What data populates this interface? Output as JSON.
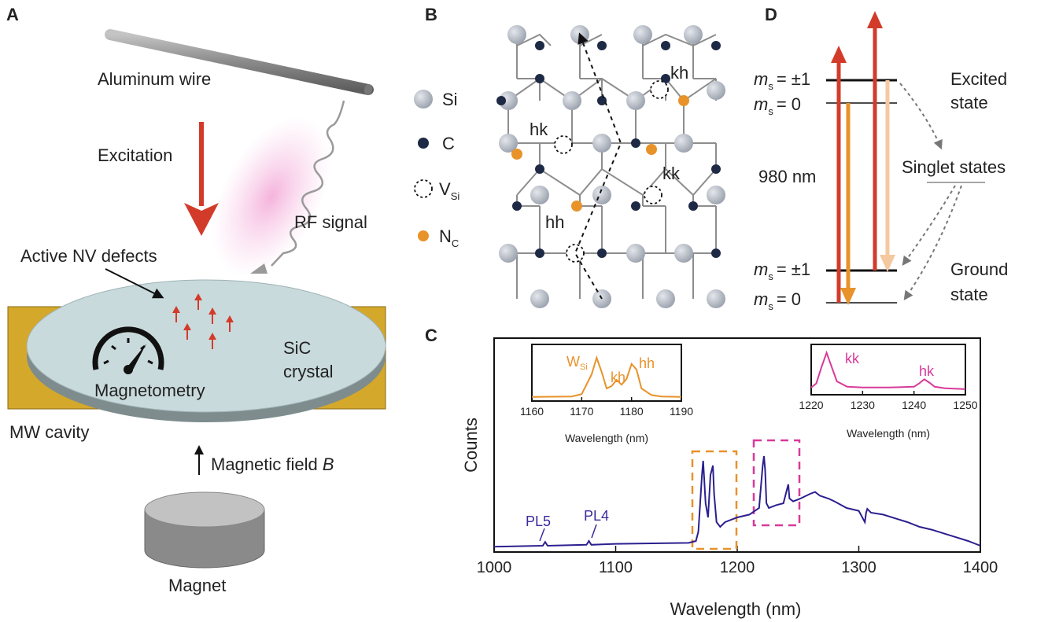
{
  "panels": {
    "A": {
      "letter": "A",
      "wire_label": "Aluminum wire",
      "excitation_label": "Excitation",
      "rf_label": "RF signal",
      "defects_label": "Active NV defects",
      "magnetometry_label": "Magnetometry",
      "crystal_label_1": "SiC",
      "crystal_label_2": "crystal",
      "cavity_label": "MW cavity",
      "field_label": "Magnetic field",
      "field_symbol": "B",
      "magnet_label": "Magnet"
    },
    "B": {
      "letter": "B",
      "legend": [
        {
          "name": "Si",
          "color": "#bfc4cc",
          "kind": "si"
        },
        {
          "name": "C",
          "color": "#1e2a45",
          "kind": "c"
        },
        {
          "name": "V",
          "sub": "Si",
          "kind": "vac"
        },
        {
          "name": "N",
          "sub": "C",
          "color": "#e8922a",
          "kind": "n"
        }
      ],
      "site_labels": [
        "kh",
        "hk",
        "kk",
        "hh"
      ]
    },
    "C": {
      "letter": "C",
      "xlabel": "Wavelength (nm)",
      "ylabel": "Counts",
      "peak_labels": [
        "PL5",
        "PL4"
      ]
    },
    "D": {
      "letter": "D",
      "levels": {
        "ms_pm1": "= ±1",
        "ms_0": "= 0",
        "m": "m",
        "s": "s"
      },
      "excited_1": "Excited",
      "excited_2": "state",
      "singlet": "Singlet states",
      "wavelength": "980 nm",
      "ground_1": "Ground",
      "ground_2": "state"
    }
  },
  "colors": {
    "red": "#d23b2a",
    "orange": "#e8922a",
    "peach": "#f5c9a0",
    "magenta": "#d8399a",
    "navy": "#2b1f8f",
    "gold": "#d4a82a",
    "crystal": "#c9dadc"
  },
  "chart_data": [
    {
      "type": "line",
      "xlabel": "Wavelength (nm)",
      "ylabel": "Counts",
      "xlim": [
        1000,
        1400
      ],
      "xticks": [
        1000,
        1100,
        1200,
        1300,
        1400
      ],
      "series": [
        {
          "x": [
            1000,
            1020,
            1040,
            1042,
            1044,
            1060,
            1076,
            1078,
            1080,
            1100,
            1130,
            1160,
            1166,
            1168,
            1171,
            1172,
            1174,
            1176,
            1178,
            1180,
            1181,
            1183,
            1186,
            1190,
            1200,
            1210,
            1218,
            1221,
            1222,
            1223,
            1224,
            1226,
            1232,
            1238,
            1241,
            1242,
            1243,
            1246,
            1252,
            1260,
            1264,
            1268,
            1275,
            1280,
            1290,
            1300,
            1305,
            1306,
            1307,
            1310,
            1320,
            1330,
            1340,
            1350,
            1360,
            1370,
            1380,
            1390,
            1400
          ],
          "y": [
            0.04,
            0.045,
            0.05,
            0.09,
            0.05,
            0.055,
            0.06,
            0.1,
            0.06,
            0.07,
            0.075,
            0.08,
            0.1,
            0.2,
            0.8,
            0.95,
            0.5,
            0.35,
            0.8,
            0.9,
            0.6,
            0.3,
            0.25,
            0.3,
            0.35,
            0.38,
            0.45,
            0.9,
            1.0,
            0.85,
            0.5,
            0.45,
            0.48,
            0.5,
            0.65,
            0.7,
            0.55,
            0.52,
            0.55,
            0.6,
            0.62,
            0.58,
            0.55,
            0.52,
            0.45,
            0.42,
            0.3,
            0.4,
            0.44,
            0.4,
            0.38,
            0.34,
            0.3,
            0.25,
            0.22,
            0.18,
            0.14,
            0.1,
            0.05
          ]
        }
      ]
    },
    {
      "type": "line",
      "xlabel": "Wavelength (nm)",
      "xlim": [
        1160,
        1190
      ],
      "xticks": [
        1160,
        1170,
        1180,
        1190
      ],
      "annotations": [
        "W",
        "kh",
        "hh"
      ],
      "annotation_sub": "Si",
      "series": [
        {
          "x": [
            1160,
            1168,
            1170,
            1172,
            1173,
            1174,
            1175,
            1176,
            1177,
            1178,
            1179,
            1180,
            1181,
            1182,
            1184,
            1186,
            1190
          ],
          "y": [
            0.02,
            0.03,
            0.08,
            0.5,
            0.85,
            0.55,
            0.2,
            0.25,
            0.38,
            0.28,
            0.4,
            0.72,
            0.6,
            0.2,
            0.06,
            0.03,
            0.02
          ]
        }
      ]
    },
    {
      "type": "line",
      "xlabel": "Wavelength (nm)",
      "xlim": [
        1220,
        1250
      ],
      "xticks": [
        1220,
        1230,
        1240,
        1250
      ],
      "annotations": [
        "kk",
        "hk"
      ],
      "series": [
        {
          "x": [
            1220,
            1221,
            1222,
            1223,
            1224,
            1225,
            1227,
            1230,
            1235,
            1240,
            1241,
            1242,
            1243,
            1244,
            1246,
            1250
          ],
          "y": [
            0.1,
            0.2,
            0.6,
            0.95,
            0.6,
            0.25,
            0.12,
            0.1,
            0.1,
            0.12,
            0.2,
            0.3,
            0.22,
            0.12,
            0.08,
            0.06
          ]
        }
      ]
    }
  ]
}
